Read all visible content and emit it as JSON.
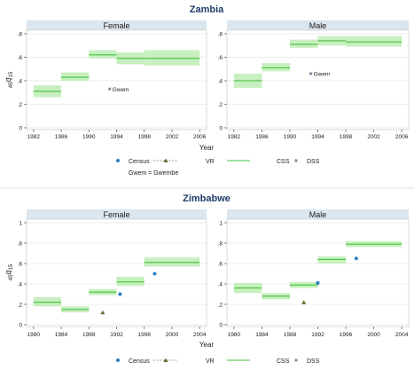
{
  "chart_data": [
    {
      "type": "line",
      "title": "Zambia",
      "ylabel_main": "45",
      "ylabel_q": "q",
      "ylabel_sub": "15",
      "xlabel": "Year",
      "ylim": [
        0,
        0.8
      ],
      "yticks": [
        "0",
        ".2",
        ".4",
        ".6",
        ".8"
      ],
      "yticks_values": [
        0,
        0.2,
        0.4,
        0.6,
        0.8
      ],
      "xlim": [
        1981,
        2007
      ],
      "xticks": [
        1982,
        1986,
        1990,
        1994,
        1998,
        2002,
        2006
      ],
      "panels": [
        {
          "name": "Female",
          "css": [
            {
              "x0": 1982,
              "x1": 1986,
              "y": 0.31,
              "lo": 0.26,
              "hi": 0.36
            },
            {
              "x0": 1986,
              "x1": 1990,
              "y": 0.43,
              "lo": 0.4,
              "hi": 0.47
            },
            {
              "x0": 1990,
              "x1": 1994,
              "y": 0.62,
              "lo": 0.59,
              "hi": 0.66
            },
            {
              "x0": 1994,
              "x1": 1998,
              "y": 0.59,
              "lo": 0.54,
              "hi": 0.64
            },
            {
              "x0": 1998,
              "x1": 2006,
              "y": 0.59,
              "lo": 0.53,
              "hi": 0.66
            }
          ],
          "census": [],
          "vr": [],
          "dss": [
            {
              "x": 1993,
              "y": 0.33,
              "label": "Gwem"
            }
          ]
        },
        {
          "name": "Male",
          "css": [
            {
              "x0": 1982,
              "x1": 1986,
              "y": 0.4,
              "lo": 0.34,
              "hi": 0.46
            },
            {
              "x0": 1986,
              "x1": 1990,
              "y": 0.51,
              "lo": 0.48,
              "hi": 0.55
            },
            {
              "x0": 1990,
              "x1": 1994,
              "y": 0.71,
              "lo": 0.68,
              "hi": 0.75
            },
            {
              "x0": 1994,
              "x1": 1998,
              "y": 0.74,
              "lo": 0.7,
              "hi": 0.78
            },
            {
              "x0": 1998,
              "x1": 2006,
              "y": 0.73,
              "lo": 0.69,
              "hi": 0.78
            }
          ],
          "census": [],
          "vr": [],
          "dss": [
            {
              "x": 1993,
              "y": 0.46,
              "label": "Gwem"
            }
          ]
        }
      ],
      "legend": [
        "Census",
        "VR",
        "CSS",
        "DSS"
      ],
      "legend_note": "Gwem = Gwembe"
    },
    {
      "type": "line",
      "title": "Zimbabwe",
      "ylabel_main": "45",
      "ylabel_q": "q",
      "ylabel_sub": "15",
      "xlabel": "Year",
      "ylim": [
        0,
        1
      ],
      "yticks": [
        "0",
        ".2",
        ".4",
        ".6",
        ".8",
        "1"
      ],
      "yticks_values": [
        0,
        0.2,
        0.4,
        0.6,
        0.8,
        1.0
      ],
      "xlim": [
        1979,
        2005
      ],
      "xticks": [
        1980,
        1984,
        1988,
        1992,
        1996,
        2000,
        2004
      ],
      "panels": [
        {
          "name": "Female",
          "css": [
            {
              "x0": 1980,
              "x1": 1984,
              "y": 0.22,
              "lo": 0.18,
              "hi": 0.27
            },
            {
              "x0": 1984,
              "x1": 1988,
              "y": 0.15,
              "lo": 0.12,
              "hi": 0.18
            },
            {
              "x0": 1988,
              "x1": 1992,
              "y": 0.32,
              "lo": 0.29,
              "hi": 0.35
            },
            {
              "x0": 1992,
              "x1": 1996,
              "y": 0.42,
              "lo": 0.38,
              "hi": 0.47
            },
            {
              "x0": 1996,
              "x1": 2004,
              "y": 0.61,
              "lo": 0.57,
              "hi": 0.66
            }
          ],
          "census": [
            {
              "x": 1992.5,
              "y": 0.3
            },
            {
              "x": 1997.5,
              "y": 0.5
            }
          ],
          "vr": [
            {
              "x": 1990,
              "y": 0.12
            }
          ],
          "dss": []
        },
        {
          "name": "Male",
          "css": [
            {
              "x0": 1980,
              "x1": 1984,
              "y": 0.36,
              "lo": 0.31,
              "hi": 0.41
            },
            {
              "x0": 1984,
              "x1": 1988,
              "y": 0.28,
              "lo": 0.25,
              "hi": 0.31
            },
            {
              "x0": 1988,
              "x1": 1992,
              "y": 0.39,
              "lo": 0.36,
              "hi": 0.42
            },
            {
              "x0": 1992,
              "x1": 1996,
              "y": 0.64,
              "lo": 0.6,
              "hi": 0.67
            },
            {
              "x0": 1996,
              "x1": 2004,
              "y": 0.79,
              "lo": 0.76,
              "hi": 0.82
            }
          ],
          "census": [
            {
              "x": 1992,
              "y": 0.41
            },
            {
              "x": 1997.5,
              "y": 0.65
            }
          ],
          "vr": [
            {
              "x": 1990,
              "y": 0.22
            }
          ],
          "dss": []
        }
      ],
      "legend": [
        "Census",
        "VR",
        "CSS",
        "DSS"
      ],
      "legend_note": ""
    }
  ],
  "colors": {
    "strip": "#dbe6ee",
    "plot_border": "#d0d0d0",
    "grid": "#e6e6e6",
    "band": "#c8efc0",
    "css_line": "#44c23a",
    "census": "#2a7fc3",
    "vr": "#5a6e29",
    "vr_line": "#7f7f7f",
    "dss": "#7f8f9f",
    "title": "#1f3d6b",
    "text": "#222222"
  }
}
